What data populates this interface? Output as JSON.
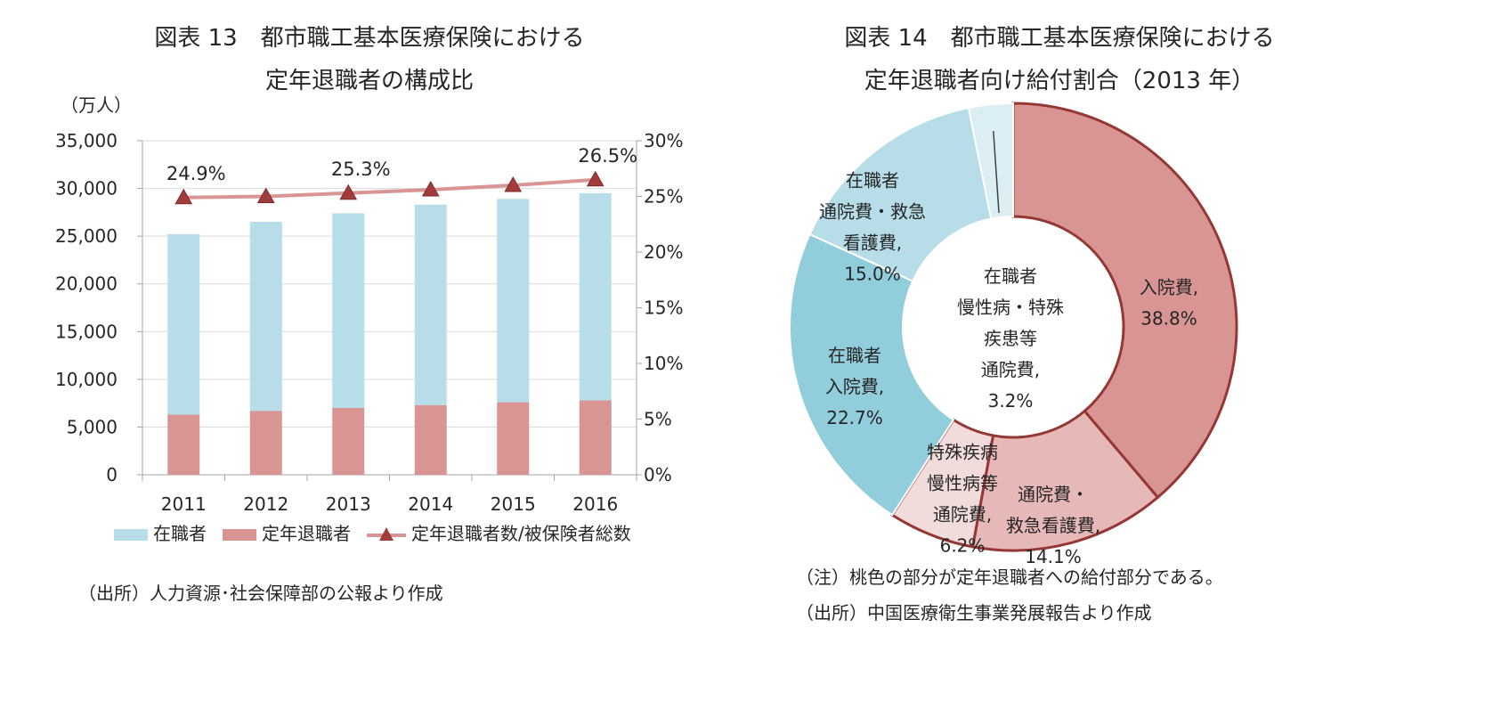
{
  "fig13": {
    "title_line1": "図表 13　都市職工基本医療保険における",
    "title_line2": "定年退職者の構成比",
    "source": "（出所）人力資源･社会保障部の公報より作成"
  },
  "fig14": {
    "title_line1": "図表 14　都市職工基本医療保険における",
    "title_line2": "定年退職者向け給付割合（2013 年）",
    "note": "（注）桃色の部分が定年退職者への給付部分である。",
    "source": "（出所）中国医療衛生事業発展報告より作成"
  },
  "chart_data": [
    {
      "type": "bar",
      "stacked": true,
      "categories": [
        "2011",
        "2012",
        "2013",
        "2014",
        "2015",
        "2016"
      ],
      "y_unit": "（万人）",
      "ylim": [
        0,
        35000
      ],
      "y_ticks": [
        "0",
        "5,000",
        "10,000",
        "15,000",
        "20,000",
        "25,000",
        "30,000",
        "35,000"
      ],
      "y2lim": [
        0,
        30
      ],
      "y2_ticks": [
        "0%",
        "5%",
        "10%",
        "15%",
        "20%",
        "25%",
        "30%"
      ],
      "grid": true,
      "legend_position": "bottom",
      "series": [
        {
          "name": "定年退職者",
          "values": [
            6300,
            6700,
            7000,
            7300,
            7600,
            7800
          ],
          "color": "#d99594"
        },
        {
          "name": "在職者",
          "values": [
            18900,
            19800,
            20400,
            21000,
            21300,
            21700
          ],
          "color": "#b6dde8"
        },
        {
          "name": "定年退職者数/被保険者総数",
          "axis": "right",
          "values": [
            24.9,
            25.0,
            25.3,
            25.6,
            26.0,
            26.5
          ],
          "color": "#d99594",
          "marker_color": "#a03c3c"
        }
      ],
      "data_labels": [
        {
          "index": 0,
          "text": "24.9%"
        },
        {
          "index": 2,
          "text": "25.3%"
        },
        {
          "index": 5,
          "text": "26.5%"
        }
      ]
    },
    {
      "type": "pie",
      "donut": true,
      "slices": [
        {
          "label": [
            "入院費,",
            "38.8%"
          ],
          "value": 38.8,
          "color": "#d99594",
          "edge": "#953735"
        },
        {
          "label": [
            "通院費・",
            "救急看護費,",
            "14.1%"
          ],
          "value": 14.1,
          "color": "#e6b9b8",
          "edge": "#953735"
        },
        {
          "label": [
            "特殊疾病",
            "慢性病等",
            "通院費,",
            "6.2%"
          ],
          "value": 6.2,
          "color": "#f2dcdb",
          "edge": "#953735"
        },
        {
          "label": [
            "在職者",
            "入院費,",
            "22.7%"
          ],
          "value": 22.7,
          "color": "#92cddc",
          "edge": "#ffffff"
        },
        {
          "label": [
            "在職者",
            "通院費・救急",
            "看護費,",
            "15.0%"
          ],
          "value": 15.0,
          "color": "#b6dde8",
          "edge": "#ffffff"
        },
        {
          "label": [
            "在職者",
            "慢性病・特殊",
            "疾患等",
            "通院費,",
            "3.2%"
          ],
          "value": 3.2,
          "color": "#dbeef3",
          "edge": "#ffffff"
        }
      ]
    }
  ]
}
